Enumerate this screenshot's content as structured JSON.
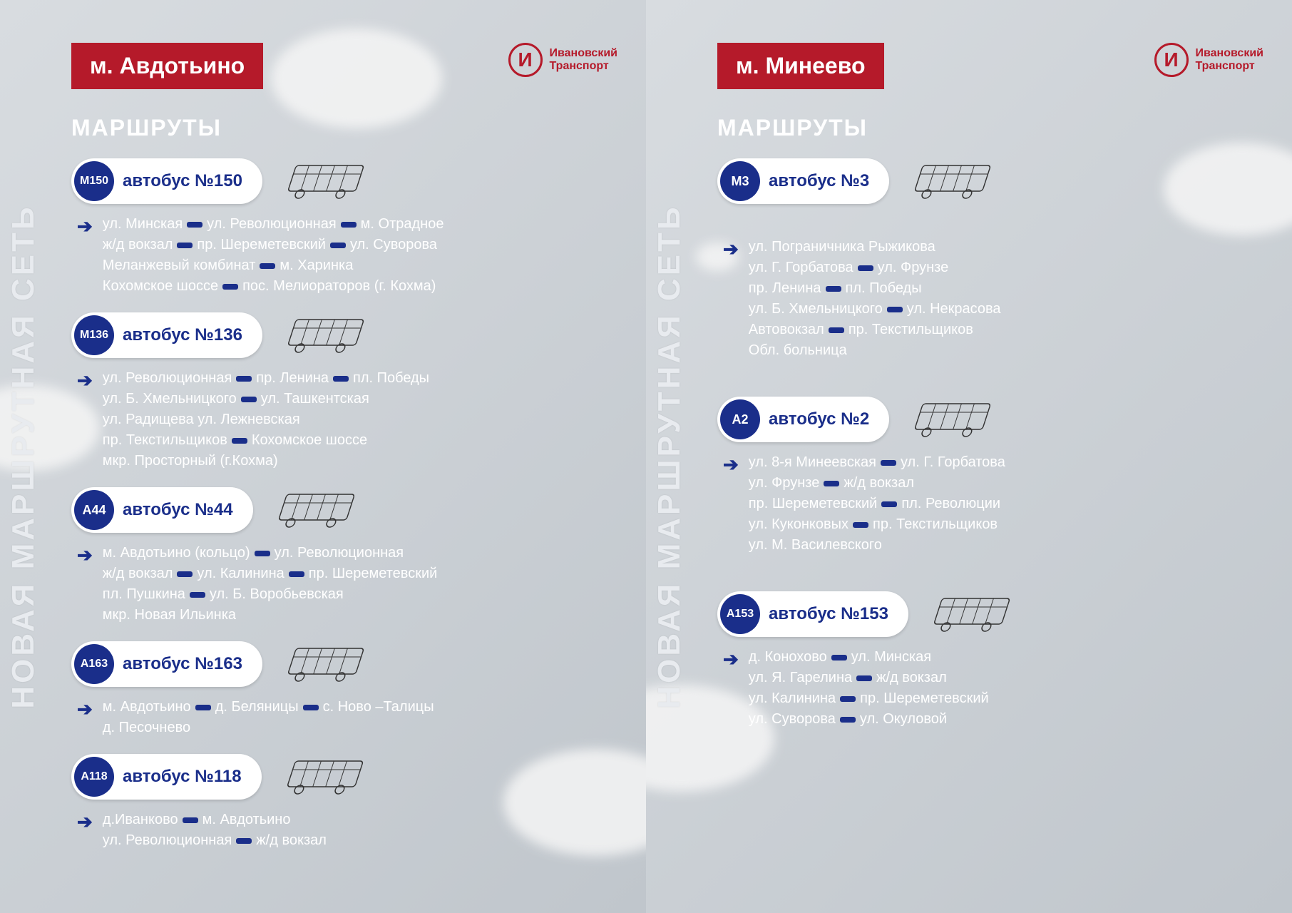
{
  "meta": {
    "vertical_title": "НОВАЯ МАРШРУТНАЯ СЕТЬ",
    "routes_heading": "МАРШРУТЫ",
    "logo_text_line1": "Ивановский",
    "logo_text_line2": "Транспорт",
    "logo_symbol": "И",
    "colors": {
      "panel_bg_from": "#d8dce0",
      "panel_bg_to": "#c0c6cc",
      "district_badge": "#b51a2a",
      "route_code_bg": "#1a2e8a",
      "pill_bg": "#ffffff",
      "text_white": "#ffffff",
      "vertical_title": "#e8ebef"
    },
    "font_sizes": {
      "vertical_title": 44,
      "district": 32,
      "routes_heading": 32,
      "route_label": 24,
      "stops": 20
    }
  },
  "panels": [
    {
      "district": "м. Авдотьино",
      "routes": [
        {
          "code": "М150",
          "label": "автобус №150",
          "stops": [
            [
              "ул. Минская",
              "ул. Революционная",
              "м. Отрадное"
            ],
            [
              "ж/д вокзал",
              "пр. Шереметевский",
              "ул. Суворова"
            ],
            [
              "Меланжевый комбинат",
              "м. Харинка"
            ],
            [
              "Кохомское шоссе",
              "пос. Мелиораторов (г. Кохма)"
            ]
          ]
        },
        {
          "code": "М136",
          "label": "автобус №136",
          "stops": [
            [
              "ул. Революционная",
              "пр. Ленина",
              "пл. Победы"
            ],
            [
              "ул. Б. Хмельницкого",
              "ул. Ташкентская"
            ],
            [
              "ул. Радищева   ул. Лежневская"
            ],
            [
              "пр. Текстильщиков",
              "Кохомское шоссе"
            ],
            [
              "мкр. Просторный (г.Кохма)"
            ]
          ]
        },
        {
          "code": "А44",
          "label": "автобус №44",
          "stops": [
            [
              "м. Авдотьино (кольцо)",
              "ул. Революционная"
            ],
            [
              "ж/д вокзал",
              "ул. Калинина",
              "пр. Шереметевский"
            ],
            [
              "пл. Пушкина",
              "ул. Б. Воробьевская"
            ],
            [
              "мкр. Новая Ильинка"
            ]
          ]
        },
        {
          "code": "А163",
          "label": "автобус №163",
          "stops": [
            [
              "м. Авдотьино",
              "д. Беляницы",
              "с. Ново –Талицы"
            ],
            [
              "д. Песочнево"
            ]
          ]
        },
        {
          "code": "А118",
          "label": "автобус №118",
          "stops": [
            [
              "д.Иванково",
              "м. Авдотьино"
            ],
            [
              "ул. Революционная",
              "ж/д вокзал"
            ]
          ]
        }
      ]
    },
    {
      "district": "м. Минеево",
      "routes": [
        {
          "code": "М3",
          "label": "автобус №3",
          "stops": [
            [
              "ул. Пограничника Рыжикова"
            ],
            [
              "ул. Г. Горбатова",
              "ул. Фрунзе"
            ],
            [
              "пр. Ленина",
              "пл. Победы"
            ],
            [
              "ул. Б. Хмельницкого",
              "ул. Некрасова"
            ],
            [
              "Автовокзал",
              "пр. Текстильщиков"
            ],
            [
              "Обл. больница"
            ]
          ]
        },
        {
          "code": "А2",
          "label": "автобус №2",
          "stops": [
            [
              "ул. 8-я Минеевская",
              "ул. Г. Горбатова"
            ],
            [
              "ул. Фрунзе",
              "ж/д вокзал"
            ],
            [
              "пр. Шереметевский",
              "пл. Революции"
            ],
            [
              "ул. Куконковых",
              "пр. Текстильщиков"
            ],
            [
              "ул. М. Василевского"
            ]
          ]
        },
        {
          "code": "А153",
          "label": "автобус №153",
          "stops": [
            [
              "д. Конохово",
              "ул. Минская"
            ],
            [
              "ул. Я. Гарелина",
              "ж/д вокзал"
            ],
            [
              "ул. Калинина",
              "пр. Шереметевский"
            ],
            [
              "ул. Суворова",
              "ул. Окуловой"
            ]
          ]
        }
      ]
    }
  ]
}
